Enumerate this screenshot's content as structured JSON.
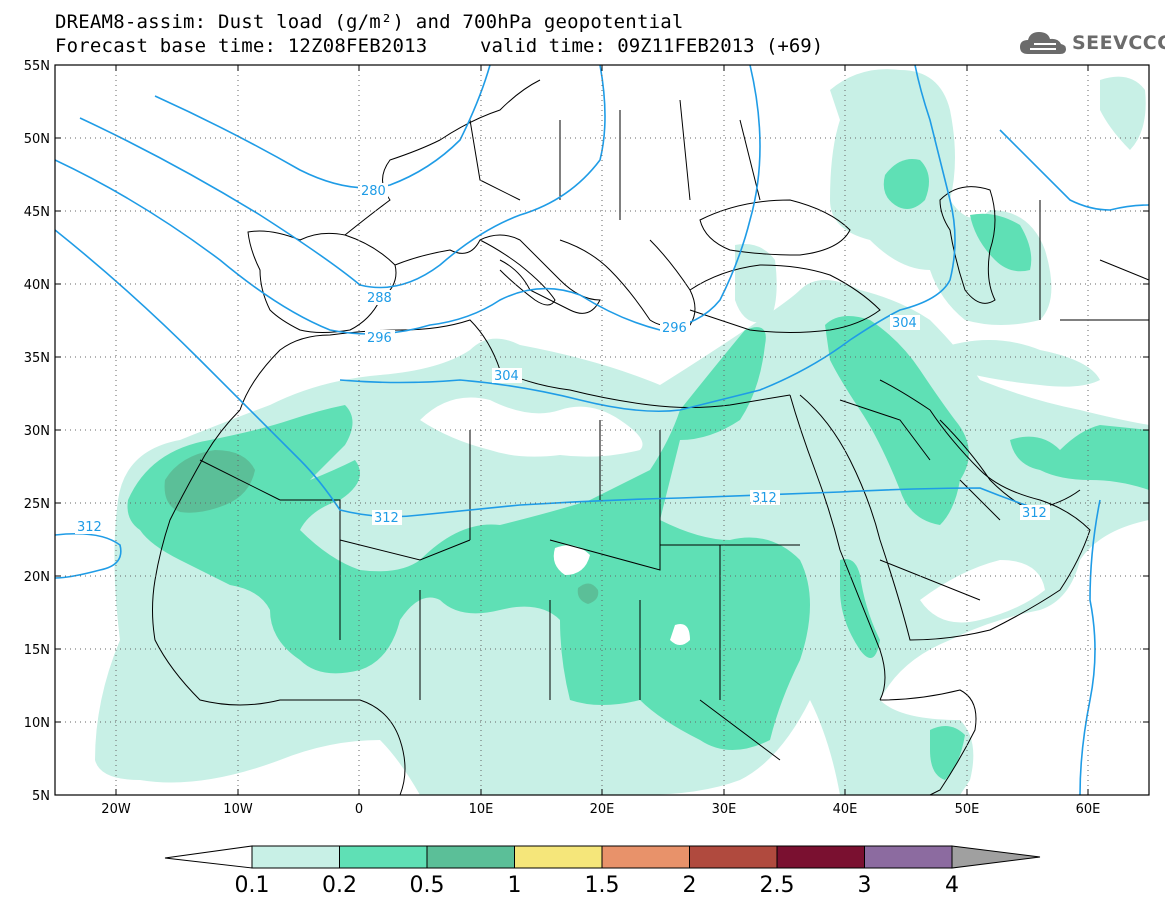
{
  "title": {
    "line1": "DREAM8-assim: Dust load (g/m²) and 700hPa geopotential",
    "line2_left": "Forecast base time: 12Z08FEB2013",
    "line2_right": "valid time: 09Z11FEB2013 (+69)"
  },
  "logo": {
    "text": "SEEVCCC",
    "icon": "cloud-logo-icon"
  },
  "map": {
    "lat_ticks": [
      "55N",
      "50N",
      "45N",
      "40N",
      "35N",
      "30N",
      "25N",
      "20N",
      "15N",
      "10N",
      "5N"
    ],
    "lon_ticks": [
      "20W",
      "10W",
      "0",
      "10E",
      "20E",
      "30E",
      "40E",
      "50E",
      "60E"
    ],
    "extent": {
      "lon_min": -25,
      "lon_max": 65,
      "lat_min": 5,
      "lat_max": 55
    }
  },
  "contours": {
    "color": "#1f9ce6",
    "labels": [
      "280",
      "288",
      "296",
      "304",
      "312",
      "296",
      "304",
      "312",
      "312",
      "312"
    ]
  },
  "colorbar": {
    "ticks": [
      "0.1",
      "0.2",
      "0.5",
      "1",
      "1.5",
      "2",
      "2.5",
      "3",
      "4"
    ],
    "colors": [
      "#c8f0e6",
      "#5fe0b5",
      "#5bbf98",
      "#f5e67a",
      "#e8926a",
      "#b04a3e",
      "#7a1030",
      "#8c6ba0"
    ],
    "under_color": "#ffffff",
    "over_color": "#a0a0a0"
  },
  "colors": {
    "light_dust": "#c8f0e6",
    "medium_dust": "#5fe0b5",
    "heavy_dust": "#5bbf98"
  }
}
